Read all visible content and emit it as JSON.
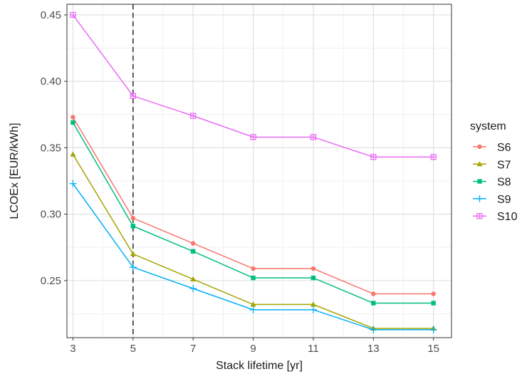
{
  "chart_data": {
    "type": "line",
    "xlabel": "Stack lifetime [yr]",
    "ylabel": "LCOEx [EUR/kWh]",
    "x": [
      3,
      5,
      7,
      9,
      11,
      13,
      15
    ],
    "xlim": [
      2.8,
      15.6
    ],
    "ylim": [
      0.207,
      0.458
    ],
    "x_ticks": [
      "3",
      "5",
      "7",
      "9",
      "11",
      "13",
      "15"
    ],
    "y_ticks": [
      "0.25",
      "0.30",
      "0.35",
      "0.40",
      "0.45"
    ],
    "grid": true,
    "vline": {
      "x": 5,
      "style": "dashed"
    },
    "legend": {
      "title": "system",
      "position": "right"
    },
    "series": [
      {
        "name": "S6",
        "color": "#F8766D",
        "marker": "circle",
        "values": [
          0.373,
          0.297,
          0.278,
          0.259,
          0.259,
          0.24,
          0.24
        ]
      },
      {
        "name": "S7",
        "color": "#A3A500",
        "marker": "triangle",
        "values": [
          0.345,
          0.27,
          0.251,
          0.232,
          0.232,
          0.214,
          0.214
        ]
      },
      {
        "name": "S8",
        "color": "#00BF7D",
        "marker": "square",
        "values": [
          0.369,
          0.291,
          0.272,
          0.252,
          0.252,
          0.233,
          0.233
        ]
      },
      {
        "name": "S9",
        "color": "#00B0F6",
        "marker": "plus",
        "values": [
          0.323,
          0.26,
          0.244,
          0.228,
          0.228,
          0.213,
          0.213
        ]
      },
      {
        "name": "S10",
        "color": "#E76BF3",
        "marker": "square-cross",
        "values": [
          0.45,
          0.389,
          0.374,
          0.358,
          0.358,
          0.343,
          0.343
        ]
      }
    ]
  }
}
